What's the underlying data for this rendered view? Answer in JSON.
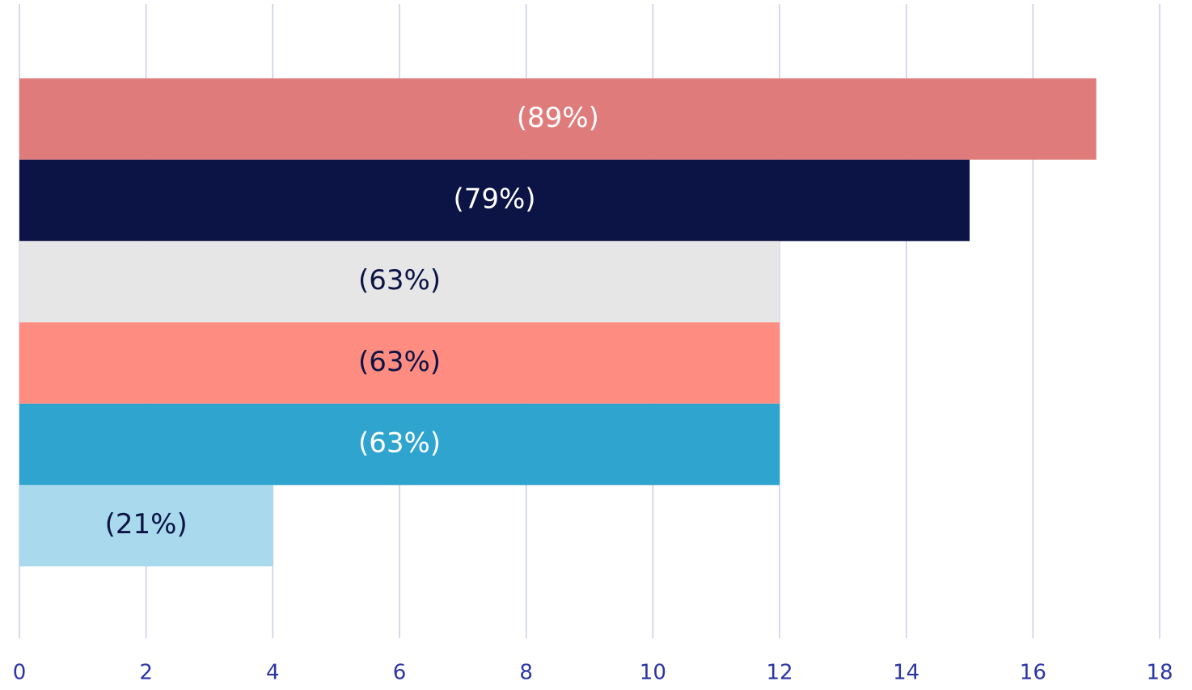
{
  "chart_data": {
    "type": "hbar",
    "values": [
      17,
      15,
      12,
      12,
      12,
      4
    ],
    "percent_labels": [
      "(89%)",
      "(79%)",
      "(63%)",
      "(63%)",
      "(63%)",
      "(21%)"
    ],
    "colors": [
      "#e07b7b",
      "#0c1445",
      "#e6e6e6",
      "#ff8c80",
      "#2fa4cf",
      "#a8d9ed"
    ],
    "label_colors": [
      "#ffffff",
      "#ffffff",
      "#0c1445",
      "#0c1445",
      "#ffffff",
      "#0c1445"
    ],
    "xlim": [
      0,
      18
    ],
    "xticks": [
      0,
      2,
      4,
      6,
      8,
      10,
      12,
      14,
      16,
      18
    ],
    "grid": true
  }
}
